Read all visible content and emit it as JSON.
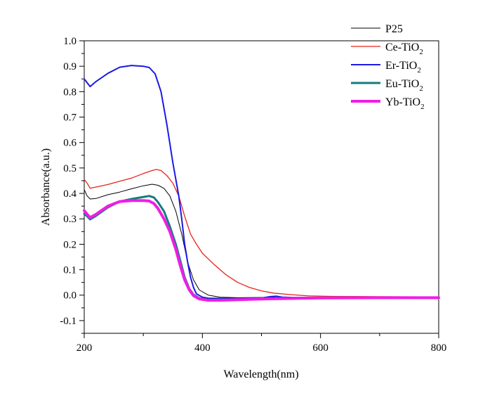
{
  "chart_data": {
    "type": "line",
    "title": "",
    "xlabel": "Wavelength(nm)",
    "ylabel": "Absorbance(a.u.)",
    "xlim": [
      200,
      800
    ],
    "ylim": [
      -0.15,
      1.0
    ],
    "xticks": [
      200,
      400,
      600,
      800
    ],
    "yticks": [
      -0.1,
      0.0,
      0.1,
      0.2,
      0.3,
      0.4,
      0.5,
      0.6,
      0.7,
      0.8,
      0.9,
      1.0
    ],
    "ytick_labels": [
      "-0.1",
      "0.0",
      "0.1",
      "0.2",
      "0.3",
      "0.4",
      "0.5",
      "0.6",
      "0.7",
      "0.8",
      "0.9",
      "1.0"
    ],
    "xtick_labels": [
      "200",
      "400",
      "600",
      "800"
    ],
    "grid": false,
    "legend_position": "top-right",
    "series": [
      {
        "name": "P25",
        "legend_main": "P25",
        "legend_sub": "",
        "color": "#000000",
        "width": 1,
        "points": [
          [
            200,
            0.415
          ],
          [
            205,
            0.39
          ],
          [
            210,
            0.378
          ],
          [
            220,
            0.38
          ],
          [
            240,
            0.395
          ],
          [
            260,
            0.405
          ],
          [
            280,
            0.418
          ],
          [
            300,
            0.43
          ],
          [
            315,
            0.436
          ],
          [
            325,
            0.432
          ],
          [
            335,
            0.42
          ],
          [
            345,
            0.39
          ],
          [
            355,
            0.33
          ],
          [
            365,
            0.24
          ],
          [
            375,
            0.13
          ],
          [
            385,
            0.06
          ],
          [
            395,
            0.02
          ],
          [
            410,
            0.0
          ],
          [
            430,
            -0.008
          ],
          [
            460,
            -0.01
          ],
          [
            500,
            -0.009
          ],
          [
            600,
            -0.008
          ],
          [
            700,
            -0.008
          ],
          [
            800,
            -0.008
          ]
        ]
      },
      {
        "name": "Ce-TiO2",
        "legend_main": "Ce-TiO",
        "legend_sub": "2",
        "color": "#e8231b",
        "width": 1.3,
        "points": [
          [
            200,
            0.455
          ],
          [
            205,
            0.44
          ],
          [
            210,
            0.42
          ],
          [
            220,
            0.425
          ],
          [
            240,
            0.435
          ],
          [
            260,
            0.448
          ],
          [
            280,
            0.46
          ],
          [
            300,
            0.478
          ],
          [
            315,
            0.49
          ],
          [
            322,
            0.494
          ],
          [
            330,
            0.49
          ],
          [
            340,
            0.47
          ],
          [
            350,
            0.44
          ],
          [
            360,
            0.39
          ],
          [
            370,
            0.31
          ],
          [
            380,
            0.24
          ],
          [
            390,
            0.2
          ],
          [
            400,
            0.165
          ],
          [
            420,
            0.12
          ],
          [
            440,
            0.08
          ],
          [
            460,
            0.05
          ],
          [
            480,
            0.03
          ],
          [
            500,
            0.017
          ],
          [
            520,
            0.008
          ],
          [
            550,
            0.002
          ],
          [
            580,
            -0.003
          ],
          [
            620,
            -0.005
          ],
          [
            700,
            -0.006
          ],
          [
            800,
            -0.007
          ]
        ]
      },
      {
        "name": "Er-TiO2",
        "legend_main": "Er-TiO",
        "legend_sub": "2",
        "color": "#1a1ae6",
        "width": 2,
        "points": [
          [
            200,
            0.85
          ],
          [
            205,
            0.835
          ],
          [
            210,
            0.82
          ],
          [
            220,
            0.84
          ],
          [
            240,
            0.872
          ],
          [
            260,
            0.896
          ],
          [
            280,
            0.903
          ],
          [
            300,
            0.9
          ],
          [
            310,
            0.895
          ],
          [
            320,
            0.87
          ],
          [
            330,
            0.8
          ],
          [
            340,
            0.67
          ],
          [
            350,
            0.52
          ],
          [
            360,
            0.39
          ],
          [
            365,
            0.3
          ],
          [
            370,
            0.2
          ],
          [
            375,
            0.13
          ],
          [
            380,
            0.07
          ],
          [
            385,
            0.03
          ],
          [
            390,
            0.005
          ],
          [
            400,
            -0.008
          ],
          [
            410,
            -0.012
          ],
          [
            430,
            -0.013
          ],
          [
            460,
            -0.013
          ],
          [
            500,
            -0.011
          ],
          [
            515,
            -0.006
          ],
          [
            525,
            -0.004
          ],
          [
            535,
            -0.008
          ],
          [
            560,
            -0.01
          ],
          [
            600,
            -0.009
          ],
          [
            700,
            -0.008
          ],
          [
            800,
            -0.008
          ]
        ]
      },
      {
        "name": "Eu-TiO2",
        "legend_main": "Eu-TiO",
        "legend_sub": "2",
        "color": "#167b7b",
        "width": 3,
        "points": [
          [
            200,
            0.32
          ],
          [
            205,
            0.31
          ],
          [
            210,
            0.298
          ],
          [
            220,
            0.312
          ],
          [
            240,
            0.345
          ],
          [
            260,
            0.368
          ],
          [
            280,
            0.378
          ],
          [
            300,
            0.386
          ],
          [
            310,
            0.39
          ],
          [
            318,
            0.384
          ],
          [
            325,
            0.365
          ],
          [
            335,
            0.33
          ],
          [
            345,
            0.27
          ],
          [
            355,
            0.2
          ],
          [
            362,
            0.14
          ],
          [
            370,
            0.07
          ],
          [
            378,
            0.025
          ],
          [
            385,
            0.002
          ],
          [
            395,
            -0.012
          ],
          [
            410,
            -0.018
          ],
          [
            430,
            -0.018
          ],
          [
            460,
            -0.016
          ],
          [
            500,
            -0.014
          ],
          [
            600,
            -0.01
          ],
          [
            700,
            -0.009
          ],
          [
            800,
            -0.009
          ]
        ]
      },
      {
        "name": "Yb-TiO2",
        "legend_main": "Yb-TiO",
        "legend_sub": "2",
        "color": "#ee1ee6",
        "width": 4,
        "points": [
          [
            200,
            0.332
          ],
          [
            205,
            0.318
          ],
          [
            210,
            0.305
          ],
          [
            220,
            0.318
          ],
          [
            240,
            0.35
          ],
          [
            260,
            0.368
          ],
          [
            280,
            0.372
          ],
          [
            300,
            0.372
          ],
          [
            310,
            0.37
          ],
          [
            318,
            0.36
          ],
          [
            325,
            0.34
          ],
          [
            335,
            0.3
          ],
          [
            345,
            0.25
          ],
          [
            355,
            0.18
          ],
          [
            362,
            0.12
          ],
          [
            370,
            0.06
          ],
          [
            378,
            0.02
          ],
          [
            385,
            -0.002
          ],
          [
            395,
            -0.015
          ],
          [
            410,
            -0.02
          ],
          [
            430,
            -0.02
          ],
          [
            460,
            -0.018
          ],
          [
            500,
            -0.015
          ],
          [
            600,
            -0.011
          ],
          [
            700,
            -0.01
          ],
          [
            800,
            -0.01
          ]
        ]
      }
    ]
  }
}
